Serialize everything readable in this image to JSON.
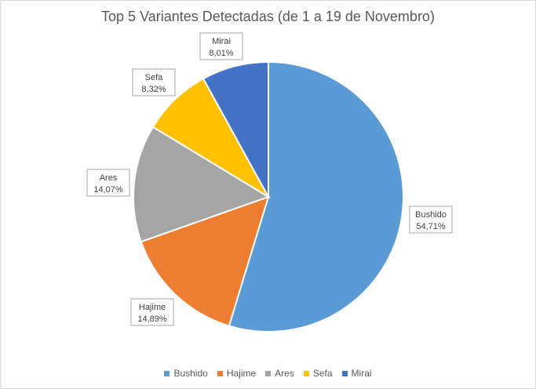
{
  "chart_data": {
    "type": "pie",
    "title": "Top 5 Variantes Detectadas (de 1 a 19 de Novembro)",
    "categories": [
      "Bushido",
      "Hajime",
      "Ares",
      "Sefa",
      "Mirai"
    ],
    "values": [
      54.71,
      14.89,
      14.07,
      8.32,
      8.01
    ],
    "value_labels": [
      "54,71%",
      "14,89%",
      "14,07%",
      "8,32%",
      "8,01%"
    ],
    "colors": [
      "#5b9bd5",
      "#ed7d31",
      "#a5a5a5",
      "#ffc000",
      "#4472c4"
    ],
    "legend_position": "bottom",
    "start_angle": "top, clockwise"
  }
}
